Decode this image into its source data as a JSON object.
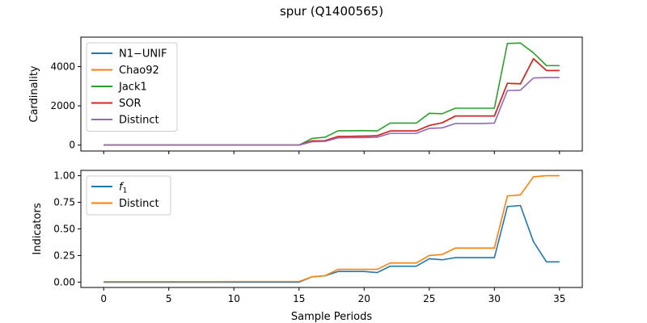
{
  "figure": {
    "title": "spur (Q1400565)",
    "xlabel": "Sample Periods"
  },
  "chart_data": [
    {
      "type": "line",
      "ylabel": "Cardinality",
      "xlim": [
        -1.75,
        36.75
      ],
      "ylim": [
        -300,
        5500
      ],
      "xticks": [
        0,
        5,
        10,
        15,
        20,
        25,
        30,
        35
      ],
      "yticks": [
        0,
        2000,
        4000
      ],
      "x_ticklabels_visible": false,
      "grid": false,
      "legend": "upper-left",
      "x": [
        0,
        1,
        2,
        3,
        4,
        5,
        6,
        7,
        8,
        9,
        10,
        11,
        12,
        13,
        14,
        15,
        16,
        17,
        18,
        19,
        20,
        21,
        22,
        23,
        24,
        25,
        26,
        27,
        28,
        29,
        30,
        31,
        32,
        33,
        34,
        35
      ],
      "series": [
        {
          "name": "N1−UNIF",
          "color": "#1f77b4",
          "values": [
            0,
            0,
            0,
            0,
            0,
            0,
            0,
            0,
            0,
            0,
            0,
            0,
            0,
            0,
            0,
            0,
            220,
            230,
            440,
            450,
            460,
            480,
            720,
            720,
            720,
            1000,
            1140,
            1480,
            1480,
            1480,
            1480,
            3150,
            3120,
            4400,
            3800,
            3800
          ]
        },
        {
          "name": "Chao92",
          "color": "#ff7f0e",
          "values": [
            0,
            0,
            0,
            0,
            0,
            0,
            0,
            0,
            0,
            0,
            0,
            0,
            0,
            0,
            0,
            0,
            220,
            230,
            440,
            450,
            460,
            480,
            720,
            720,
            720,
            1000,
            1140,
            1480,
            1480,
            1480,
            1480,
            3150,
            3120,
            4400,
            3800,
            3800
          ]
        },
        {
          "name": "Jack1",
          "color": "#2ca02c",
          "values": [
            0,
            0,
            0,
            0,
            0,
            0,
            0,
            0,
            0,
            0,
            0,
            0,
            0,
            0,
            0,
            0,
            340,
            400,
            730,
            730,
            740,
            720,
            1120,
            1120,
            1120,
            1620,
            1600,
            1880,
            1880,
            1880,
            1880,
            5180,
            5200,
            4700,
            4050,
            4050
          ]
        },
        {
          "name": "SOR",
          "color": "#d62728",
          "values": [
            0,
            0,
            0,
            0,
            0,
            0,
            0,
            0,
            0,
            0,
            0,
            0,
            0,
            0,
            0,
            0,
            220,
            230,
            440,
            450,
            460,
            480,
            720,
            720,
            720,
            1000,
            1140,
            1480,
            1480,
            1480,
            1480,
            3150,
            3120,
            4400,
            3800,
            3800
          ]
        },
        {
          "name": "Distinct",
          "color": "#9467bd",
          "values": [
            0,
            0,
            0,
            0,
            0,
            0,
            0,
            0,
            0,
            0,
            0,
            0,
            0,
            0,
            0,
            0,
            170,
            190,
            370,
            380,
            380,
            400,
            600,
            600,
            600,
            850,
            880,
            1100,
            1100,
            1100,
            1120,
            2780,
            2800,
            3420,
            3440,
            3440
          ]
        }
      ]
    },
    {
      "type": "line",
      "ylabel": "Indicators",
      "xlim": [
        -1.75,
        36.75
      ],
      "ylim": [
        -0.05,
        1.05
      ],
      "xticks": [
        0,
        5,
        10,
        15,
        20,
        25,
        30,
        35
      ],
      "yticks": [
        0.0,
        0.25,
        0.5,
        0.75,
        1.0
      ],
      "ytick_labels": [
        "0.00",
        "0.25",
        "0.50",
        "0.75",
        "1.00"
      ],
      "grid": false,
      "legend": "upper-left",
      "x": [
        0,
        1,
        2,
        3,
        4,
        5,
        6,
        7,
        8,
        9,
        10,
        11,
        12,
        13,
        14,
        15,
        16,
        17,
        18,
        19,
        20,
        21,
        22,
        23,
        24,
        25,
        26,
        27,
        28,
        29,
        30,
        31,
        32,
        33,
        34,
        35
      ],
      "series": [
        {
          "name": "f1",
          "color": "#1f77b4",
          "values": [
            0,
            0,
            0,
            0,
            0,
            0,
            0,
            0,
            0,
            0,
            0,
            0,
            0,
            0,
            0,
            0,
            0.05,
            0.06,
            0.1,
            0.1,
            0.1,
            0.09,
            0.15,
            0.15,
            0.15,
            0.22,
            0.21,
            0.23,
            0.23,
            0.23,
            0.23,
            0.71,
            0.72,
            0.38,
            0.19,
            0.19
          ]
        },
        {
          "name": "Distinct",
          "color": "#ff7f0e",
          "values": [
            0.005,
            0.005,
            0.005,
            0.005,
            0.005,
            0.005,
            0.005,
            0.005,
            0.005,
            0.005,
            0.006,
            0.006,
            0.006,
            0.006,
            0.006,
            0.006,
            0.05,
            0.06,
            0.12,
            0.12,
            0.12,
            0.12,
            0.18,
            0.18,
            0.18,
            0.25,
            0.26,
            0.32,
            0.32,
            0.32,
            0.32,
            0.81,
            0.82,
            0.99,
            1.0,
            1.0
          ]
        }
      ]
    }
  ]
}
